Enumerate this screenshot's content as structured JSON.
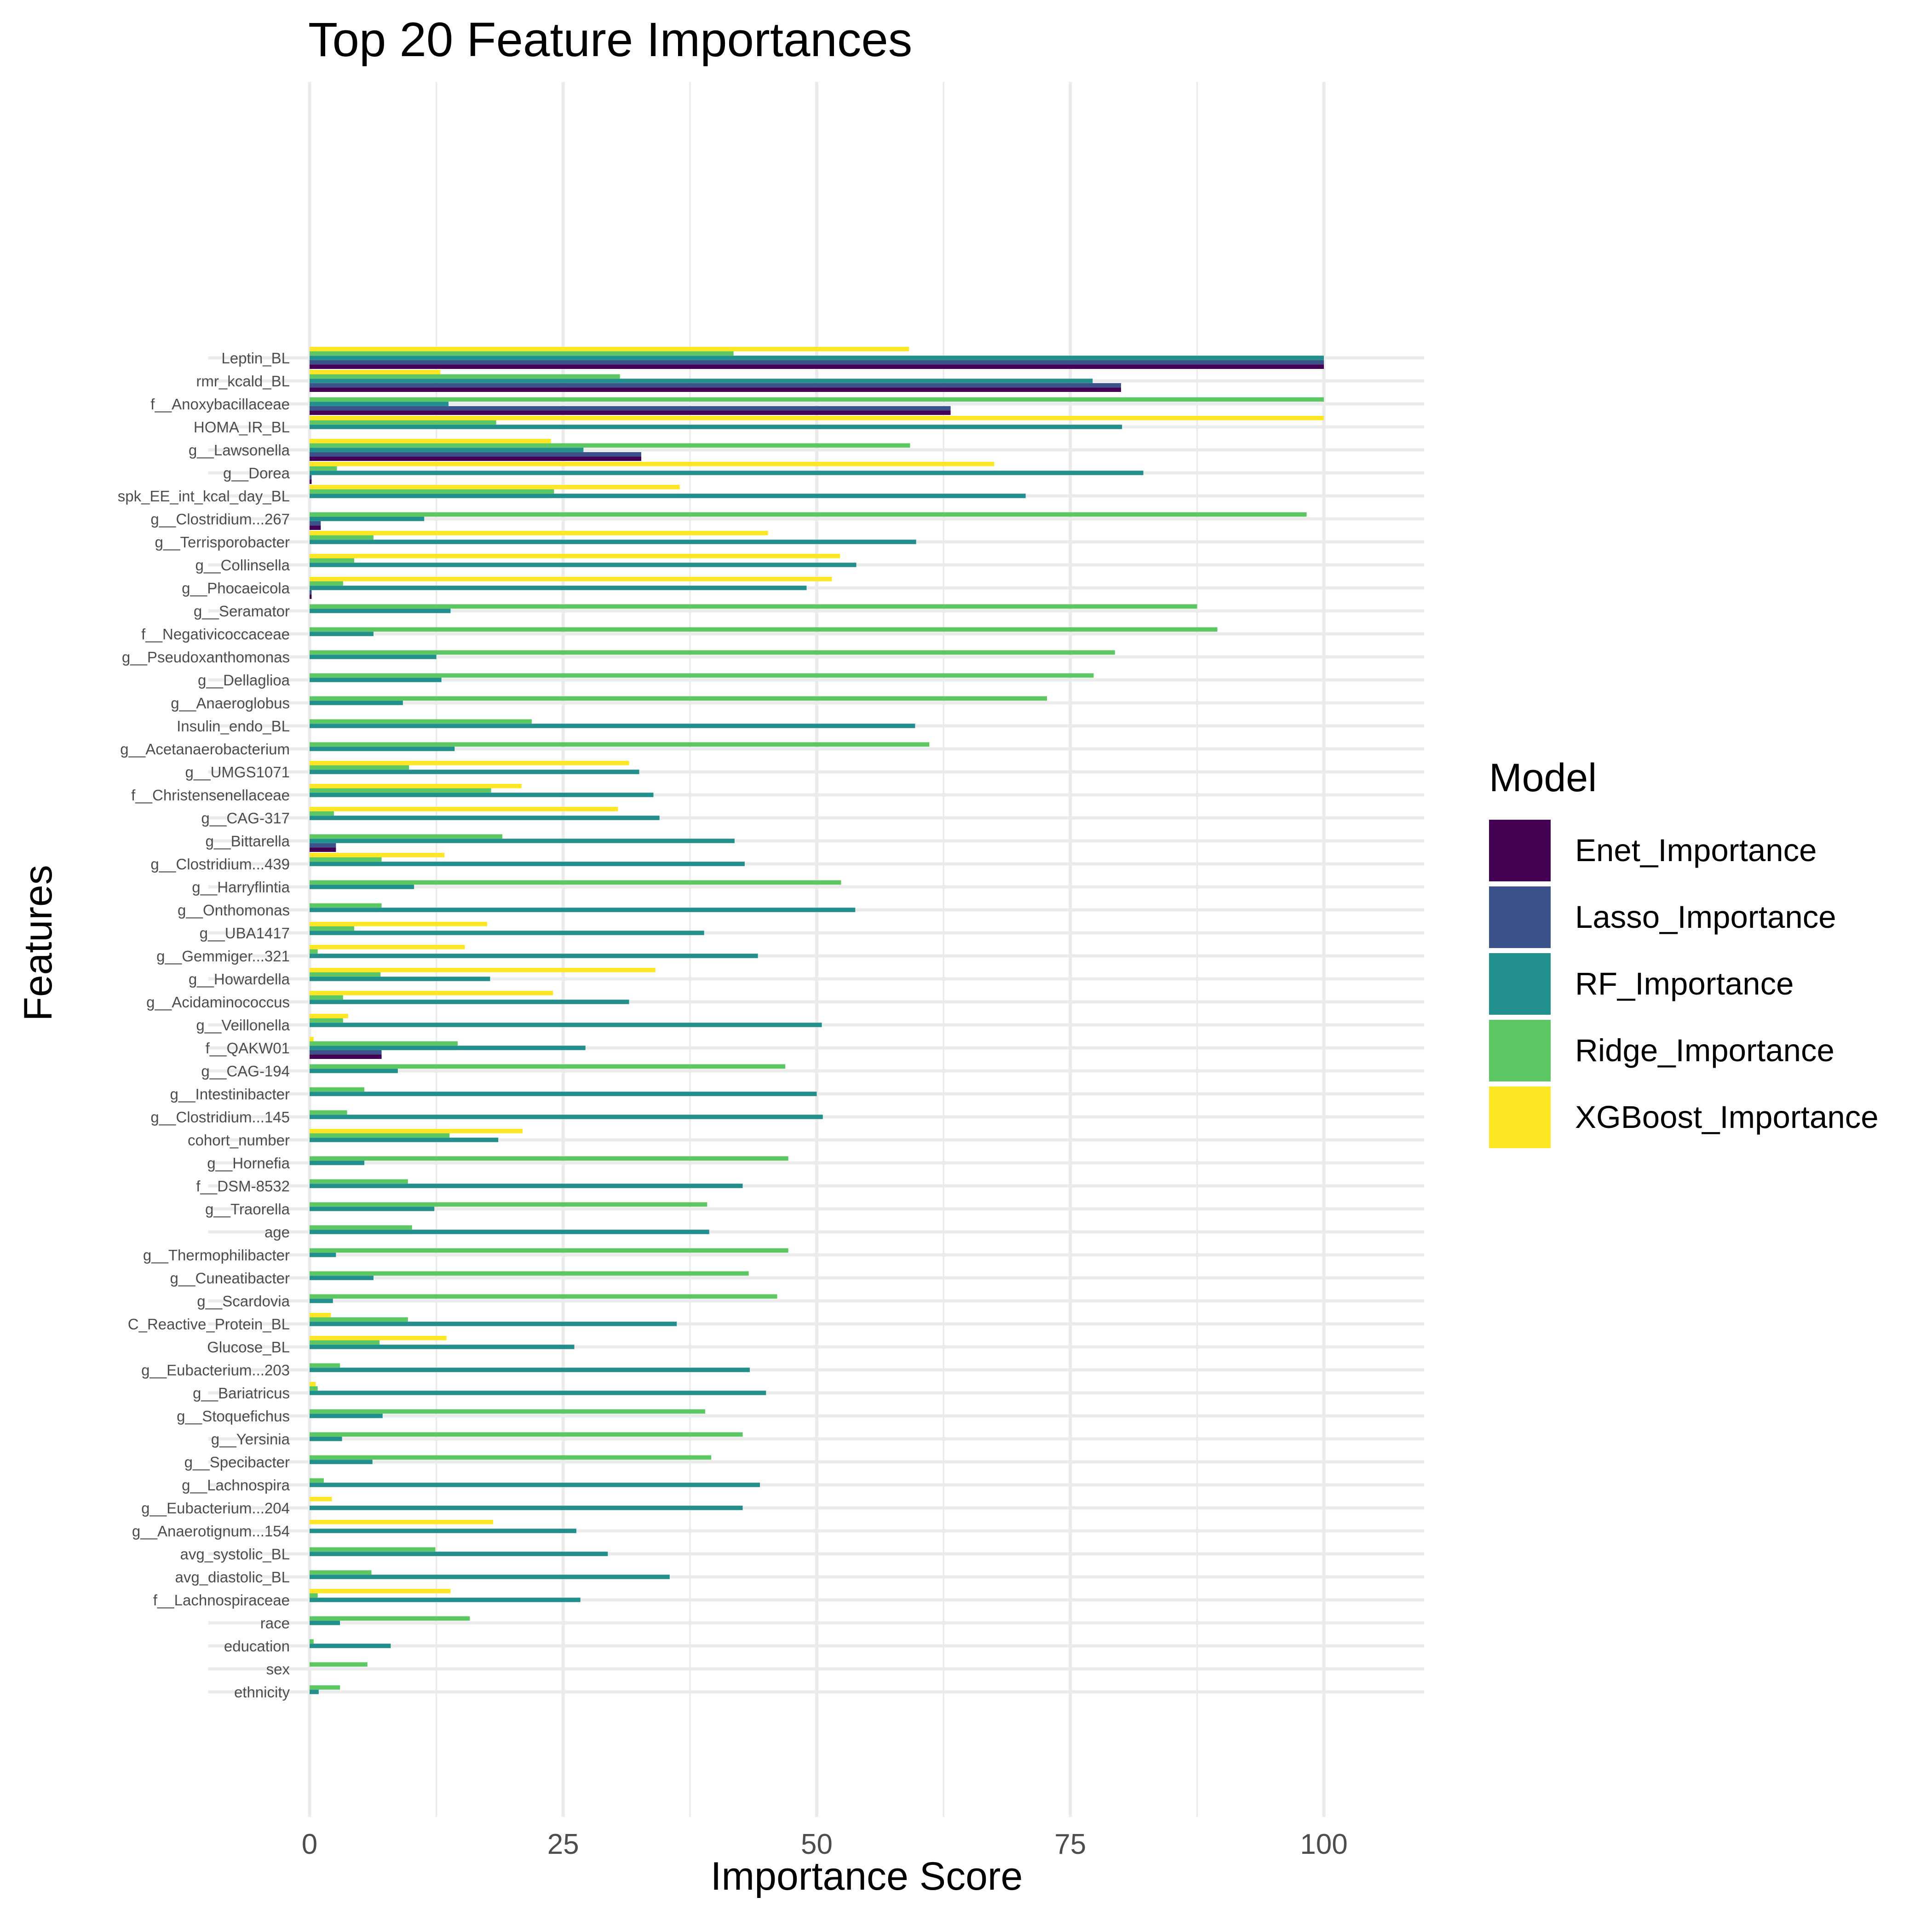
{
  "chart_data": {
    "type": "bar",
    "orientation": "horizontal",
    "title": "Top 20 Feature Importances",
    "xlabel": "Importance Score",
    "ylabel": "Features",
    "xlim": [
      -10,
      105
    ],
    "xticks": [
      0,
      25,
      50,
      75,
      100
    ],
    "grid": true,
    "legend": {
      "title": "Model",
      "placement": "right"
    },
    "categories": [
      "Leptin_BL",
      "rmr_kcald_BL",
      "f__Anoxybacillaceae",
      "HOMA_IR_BL",
      "g__Lawsonella",
      "g__Dorea",
      "spk_EE_int_kcal_day_BL",
      "g__Clostridium...267",
      "g__Terrisporobacter",
      "g__Collinsella",
      "g__Phocaeicola",
      "g__Seramator",
      "f__Negativicoccaceae",
      "g__Pseudoxanthomonas",
      "g__Dellaglioa",
      "g__Anaeroglobus",
      "Insulin_endo_BL",
      "g__Acetanaerobacterium",
      "g__UMGS1071",
      "f__Christensenellaceae",
      "g__CAG-317",
      "g__Bittarella",
      "g__Clostridium...439",
      "g__Harryflintia",
      "g__Onthomonas",
      "g__UBA1417",
      "g__Gemmiger...321",
      "g__Howardella",
      "g__Acidaminococcus",
      "g__Veillonella",
      "f__QAKW01",
      "g__CAG-194",
      "g__Intestinibacter",
      "g__Clostridium...145",
      "cohort_number",
      "g__Hornefia",
      "f__DSM-8532",
      "g__Traorella",
      "age",
      "g__Thermophilibacter",
      "g__Cuneatibacter",
      "g__Scardovia",
      "C_Reactive_Protein_BL",
      "Glucose_BL",
      "g__Eubacterium...203",
      "g__Bariatricus",
      "g__Stoquefichus",
      "g__Yersinia",
      "g__Specibacter",
      "g__Lachnospira",
      "g__Eubacterium...204",
      "g__Anaerotignum...154",
      "avg_systolic_BL",
      "avg_diastolic_BL",
      "f__Lachnospiraceae",
      "race",
      "education",
      "sex",
      "ethnicity"
    ],
    "series": [
      {
        "name": "Enet_Importance",
        "color": "#440154",
        "values": [
          100,
          80,
          63.2,
          0,
          32.7,
          0.2,
          0,
          1.1,
          0,
          0,
          0.2,
          0,
          0,
          0,
          0,
          0,
          0,
          0,
          0,
          0,
          0,
          2.6,
          0,
          0,
          0,
          0,
          0,
          0,
          0,
          0,
          7.1,
          0,
          0,
          0,
          0,
          0,
          0,
          0,
          0,
          0,
          0,
          0,
          0,
          0,
          0,
          0,
          0,
          0,
          0,
          0,
          0,
          0,
          0,
          0,
          0,
          0,
          0,
          0,
          0
        ]
      },
      {
        "name": "Lasso_Importance",
        "color": "#3B528B",
        "values": [
          100,
          80,
          63.2,
          0,
          32.7,
          0.2,
          0,
          1.1,
          0,
          0,
          0.2,
          0,
          0,
          0,
          0,
          0,
          0,
          0,
          0,
          0,
          0,
          2.6,
          0,
          0,
          0,
          0,
          0,
          0,
          0,
          0,
          7.1,
          0,
          0,
          0,
          0,
          0,
          0,
          0,
          0,
          0,
          0,
          0,
          0,
          0,
          0,
          0,
          0,
          0,
          0,
          0,
          0,
          0,
          0,
          0,
          0,
          0,
          0,
          0,
          0
        ]
      },
      {
        "name": "RF_Importance",
        "color": "#21908C",
        "values": [
          100,
          77.2,
          13.7,
          80.1,
          27,
          82.2,
          70.6,
          11.3,
          59.8,
          53.9,
          49,
          13.9,
          6.3,
          12.5,
          13,
          9.2,
          59.7,
          14.3,
          32.5,
          33.9,
          34.5,
          41.9,
          42.9,
          10.3,
          53.8,
          38.9,
          44.2,
          17.8,
          31.5,
          50.5,
          27.2,
          8.7,
          50,
          50.6,
          18.6,
          5.4,
          42.7,
          12.3,
          39.4,
          2.6,
          6.3,
          2.3,
          36.2,
          26.1,
          43.4,
          45,
          7.2,
          3.2,
          6.2,
          44.4,
          42.7,
          26.3,
          29.4,
          35.5,
          26.7,
          3,
          8,
          0,
          0.9
        ]
      },
      {
        "name": "Ridge_Importance",
        "color": "#5DC863",
        "values": [
          41.8,
          30.6,
          100,
          18.4,
          59.2,
          2.7,
          24.1,
          98.3,
          6.3,
          4.4,
          3.3,
          87.5,
          89.5,
          79.4,
          77.3,
          72.7,
          21.9,
          61.1,
          9.8,
          17.9,
          2.4,
          19,
          7.1,
          52.4,
          7.1,
          4.4,
          0.8,
          7,
          3.3,
          3.3,
          14.6,
          46.9,
          5.4,
          3.7,
          13.8,
          47.2,
          9.7,
          39.2,
          10.1,
          47.2,
          43.3,
          46.1,
          9.7,
          6.9,
          3,
          0.8,
          39,
          42.7,
          39.6,
          1.4,
          0,
          0,
          12.4,
          6.1,
          0.8,
          15.8,
          0.4,
          5.7,
          3
        ]
      },
      {
        "name": "XGBoost_Importance",
        "color": "#FDE725",
        "values": [
          59.1,
          12.9,
          0,
          100,
          23.8,
          67.5,
          36.5,
          0,
          45.2,
          52.3,
          51.5,
          0,
          0,
          0,
          0,
          0,
          0,
          0,
          31.5,
          20.9,
          30.4,
          0,
          13.3,
          0,
          0,
          17.5,
          15.3,
          34.1,
          24,
          3.8,
          0.4,
          0,
          0,
          0,
          21,
          0,
          0,
          0,
          0,
          0,
          0,
          0,
          2.1,
          13.5,
          0,
          0.6,
          0,
          0,
          0,
          0,
          2.2,
          18.1,
          0,
          0,
          13.9,
          0,
          0,
          0,
          0
        ]
      }
    ]
  }
}
